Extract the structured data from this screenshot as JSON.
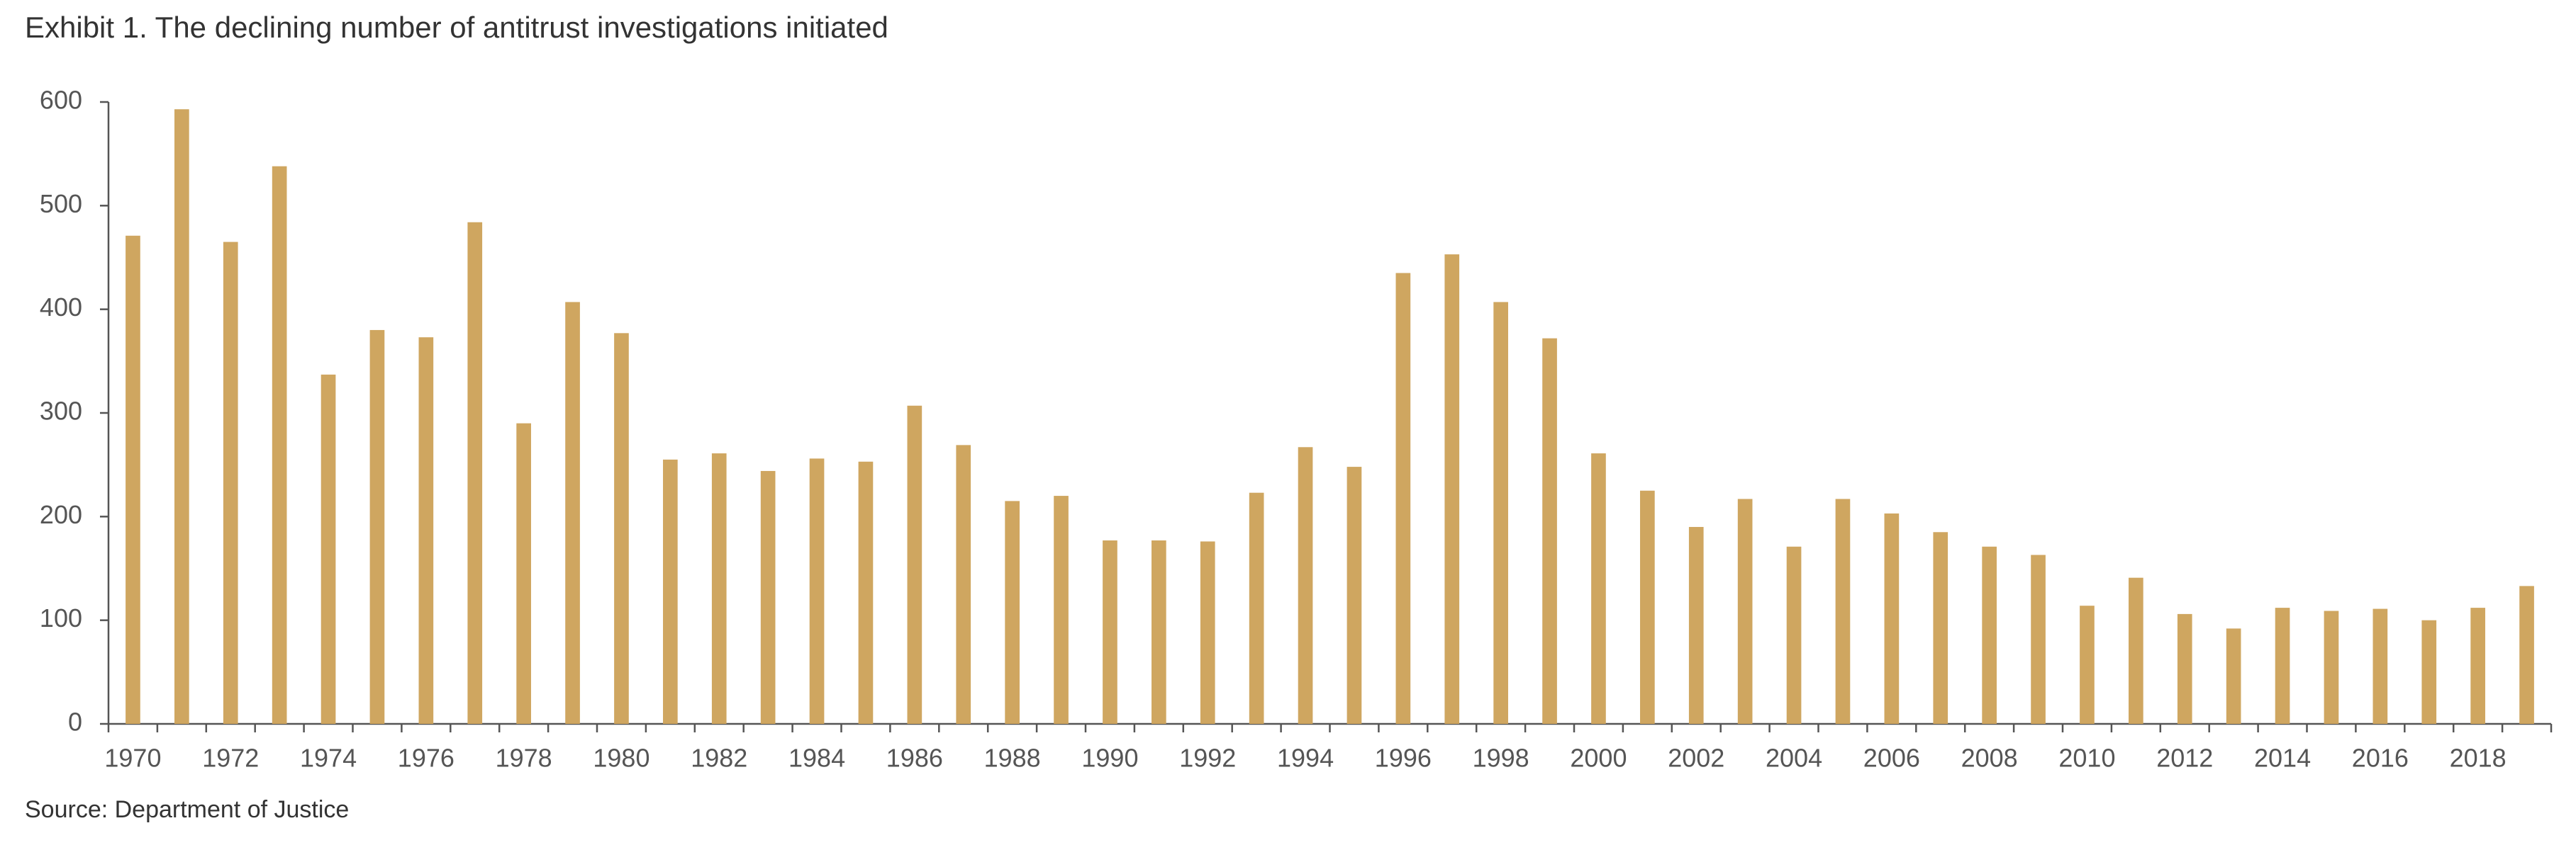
{
  "chart_data": {
    "type": "bar",
    "title": "Exhibit 1. The declining number of antitrust investigations initiated",
    "source": "Source: Department of Justice",
    "categories": [
      "1970",
      null,
      "1972",
      null,
      "1974",
      null,
      "1976",
      null,
      "1978",
      null,
      "1980",
      null,
      "1982",
      null,
      "1984",
      null,
      "1986",
      null,
      "1988",
      null,
      "1990",
      null,
      "1992",
      null,
      "1994",
      null,
      "1996",
      null,
      "1998",
      null,
      "2000",
      null,
      "2002",
      null,
      "2004",
      null,
      "2006",
      null,
      "2008",
      null,
      "2010",
      null,
      "2012",
      null,
      "2014",
      null,
      "2016",
      null,
      "2018",
      null
    ],
    "values": [
      471,
      593,
      465,
      538,
      337,
      380,
      373,
      484,
      290,
      407,
      377,
      255,
      261,
      244,
      256,
      253,
      307,
      269,
      215,
      220,
      177,
      177,
      176,
      223,
      267,
      248,
      435,
      453,
      407,
      372,
      261,
      225,
      190,
      217,
      171,
      217,
      203,
      185,
      171,
      163,
      114,
      141,
      106,
      92,
      112,
      109,
      111,
      100,
      112,
      133
    ],
    "color": "#cfa660",
    "ylim": [
      0,
      600
    ],
    "yticks": [
      0,
      100,
      200,
      300,
      400,
      500,
      600
    ],
    "grid": false
  }
}
